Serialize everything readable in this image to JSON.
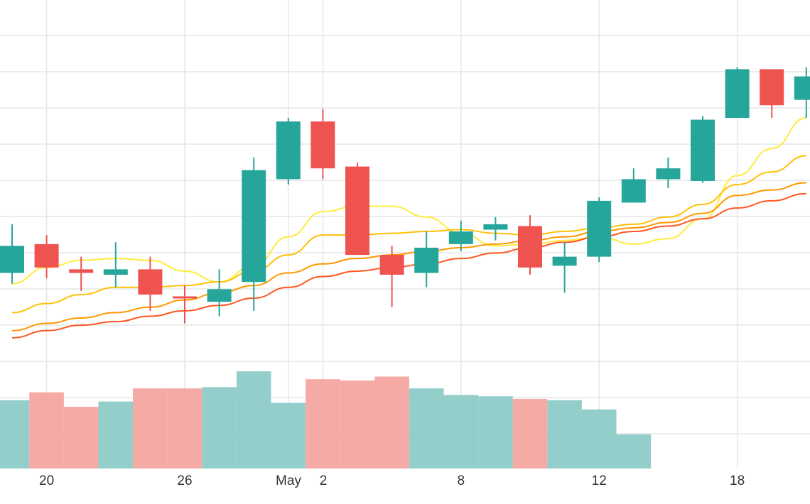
{
  "chart_data": {
    "type": "candlestick",
    "grid": true,
    "colors": {
      "up": "#26a69a",
      "down": "#ef5350",
      "volume_up": "#93cecb",
      "volume_down": "#f5aaa6",
      "grid": "#e6e6e6",
      "ma_lines": [
        "#ffeb3b",
        "#ffc107",
        "#ff9800",
        "#ff5722"
      ]
    },
    "x_ticks": [
      {
        "day": 1,
        "label": "20"
      },
      {
        "day": 5,
        "label": "26"
      },
      {
        "day": 8,
        "label": "May"
      },
      {
        "day": 9,
        "label": "2"
      },
      {
        "day": 13,
        "label": "8"
      },
      {
        "day": 17,
        "label": "12"
      },
      {
        "day": 21,
        "label": "18"
      }
    ],
    "ylim": [
      0,
      13
    ],
    "candles": [
      {
        "day": 0,
        "open": 7.4,
        "close": 8.15,
        "high": 8.75,
        "low": 7.1
      },
      {
        "day": 1,
        "open": 8.2,
        "close": 7.55,
        "high": 8.45,
        "low": 7.25
      },
      {
        "day": 2,
        "open": 7.5,
        "close": 7.4,
        "high": 7.85,
        "low": 6.9
      },
      {
        "day": 3,
        "open": 7.35,
        "close": 7.5,
        "high": 8.25,
        "low": 7.0
      },
      {
        "day": 4,
        "open": 7.5,
        "close": 6.8,
        "high": 7.85,
        "low": 6.35
      },
      {
        "day": 5,
        "open": 6.75,
        "close": 6.7,
        "high": 7.05,
        "low": 6.0
      },
      {
        "day": 6,
        "open": 6.6,
        "close": 6.95,
        "high": 7.5,
        "low": 6.2
      },
      {
        "day": 7,
        "open": 7.15,
        "close": 10.25,
        "high": 10.6,
        "low": 6.35
      },
      {
        "day": 8,
        "open": 10.0,
        "close": 11.6,
        "high": 11.7,
        "low": 9.85
      },
      {
        "day": 9,
        "open": 11.6,
        "close": 10.3,
        "high": 11.95,
        "low": 10.0
      },
      {
        "day": 10,
        "open": 10.35,
        "close": 7.9,
        "high": 10.45,
        "low": 7.9
      },
      {
        "day": 11,
        "open": 7.9,
        "close": 7.35,
        "high": 8.15,
        "low": 6.45
      },
      {
        "day": 12,
        "open": 7.4,
        "close": 8.1,
        "high": 8.55,
        "low": 7.0
      },
      {
        "day": 13,
        "open": 8.2,
        "close": 8.55,
        "high": 8.85,
        "low": 8.0
      },
      {
        "day": 14,
        "open": 8.6,
        "close": 8.75,
        "high": 8.95,
        "low": 8.3
      },
      {
        "day": 15,
        "open": 8.7,
        "close": 7.55,
        "high": 9.0,
        "low": 7.35
      },
      {
        "day": 16,
        "open": 7.6,
        "close": 7.85,
        "high": 8.25,
        "low": 6.85
      },
      {
        "day": 17,
        "open": 7.85,
        "close": 9.4,
        "high": 9.5,
        "low": 7.7
      },
      {
        "day": 18,
        "open": 9.35,
        "close": 10.0,
        "high": 10.3,
        "low": 9.35
      },
      {
        "day": 19,
        "open": 10.0,
        "close": 10.3,
        "high": 10.6,
        "low": 9.75
      },
      {
        "day": 20,
        "open": 9.95,
        "close": 11.65,
        "high": 11.75,
        "low": 9.9
      },
      {
        "day": 21,
        "open": 11.7,
        "close": 13.05,
        "high": 13.1,
        "low": 11.7
      },
      {
        "day": 22,
        "open": 13.05,
        "close": 12.05,
        "high": 13.05,
        "low": 11.7
      },
      {
        "day": 23,
        "open": 12.2,
        "close": 12.85,
        "high": 13.1,
        "low": 11.7
      }
    ],
    "volume": [
      {
        "day": 0,
        "value": 0.52,
        "dir": "up"
      },
      {
        "day": 1,
        "value": 0.58,
        "dir": "down"
      },
      {
        "day": 2,
        "value": 0.47,
        "dir": "down"
      },
      {
        "day": 3,
        "value": 0.51,
        "dir": "up"
      },
      {
        "day": 4,
        "value": 0.61,
        "dir": "down"
      },
      {
        "day": 5,
        "value": 0.61,
        "dir": "down"
      },
      {
        "day": 6,
        "value": 0.62,
        "dir": "up"
      },
      {
        "day": 7,
        "value": 0.74,
        "dir": "up"
      },
      {
        "day": 8,
        "value": 0.5,
        "dir": "up"
      },
      {
        "day": 9,
        "value": 0.68,
        "dir": "down"
      },
      {
        "day": 10,
        "value": 0.67,
        "dir": "down"
      },
      {
        "day": 11,
        "value": 0.7,
        "dir": "down"
      },
      {
        "day": 12,
        "value": 0.61,
        "dir": "up"
      },
      {
        "day": 13,
        "value": 0.56,
        "dir": "up"
      },
      {
        "day": 14,
        "value": 0.55,
        "dir": "up"
      },
      {
        "day": 15,
        "value": 0.53,
        "dir": "down"
      },
      {
        "day": 16,
        "value": 0.52,
        "dir": "up"
      },
      {
        "day": 17,
        "value": 0.45,
        "dir": "up"
      },
      {
        "day": 18,
        "value": 0.26,
        "dir": "up"
      }
    ],
    "ma_series": [
      {
        "values": [
          7.1,
          7.55,
          7.75,
          7.8,
          7.75,
          7.45,
          7.15,
          7.6,
          8.4,
          9.1,
          9.25,
          9.25,
          8.95,
          8.5,
          8.15,
          8.2,
          8.3,
          8.4,
          8.2,
          8.35,
          8.9,
          10.1,
          10.85,
          11.7
        ]
      },
      {
        "values": [
          6.3,
          6.55,
          6.8,
          7.0,
          7.0,
          7.05,
          7.15,
          7.45,
          7.9,
          8.45,
          8.45,
          8.5,
          8.55,
          8.6,
          8.5,
          8.45,
          8.55,
          8.65,
          8.75,
          8.95,
          9.3,
          9.85,
          10.2,
          10.65
        ]
      },
      {
        "values": [
          5.8,
          6.0,
          6.15,
          6.3,
          6.45,
          6.65,
          6.85,
          7.05,
          7.4,
          7.65,
          7.8,
          7.9,
          8.0,
          8.1,
          8.2,
          8.3,
          8.4,
          8.55,
          8.65,
          8.8,
          9.05,
          9.55,
          9.7,
          9.9
        ]
      },
      {
        "values": [
          5.6,
          5.8,
          5.95,
          6.05,
          6.2,
          6.35,
          6.5,
          6.7,
          7.0,
          7.3,
          7.45,
          7.55,
          7.65,
          7.8,
          7.95,
          8.1,
          8.25,
          8.4,
          8.55,
          8.7,
          8.9,
          9.2,
          9.4,
          9.6
        ]
      }
    ]
  }
}
